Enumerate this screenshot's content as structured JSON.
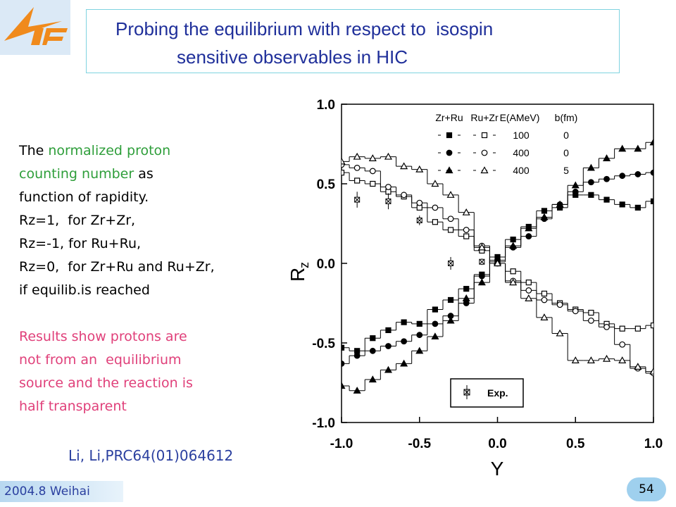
{
  "slide": {
    "title": [
      "Probing the equilibrium with respect to  isospin",
      "sensitive observables in HIC"
    ],
    "notes": [
      [
        {
          "text": "The ",
          "color": "#000000"
        },
        {
          "text": "normalized proton",
          "color": "#2e9e3a"
        }
      ],
      [
        {
          "text": "counting number",
          "color": "#2e9e3a"
        },
        {
          "text": " as",
          "color": "#000000"
        }
      ],
      [
        {
          "text": "function of rapidity.",
          "color": "#000000"
        }
      ],
      [
        {
          "text": "Rz=1,  for Zr+Zr,",
          "color": "#000000"
        }
      ],
      [
        {
          "text": "Rz=-1, for Ru+Ru,",
          "color": "#000000"
        }
      ],
      [
        {
          "text": "Rz=0,  for Zr+Ru and Ru+Zr,",
          "color": "#000000"
        }
      ],
      [
        {
          "text": "if equilib.is reached",
          "color": "#000000"
        }
      ]
    ],
    "conclusion": [
      "Results show protons are",
      "not from an  equilibrium",
      "source and the reaction is",
      "half transparent"
    ],
    "conclusion_color": "#e0407a",
    "reference": "Li, Li,PRC64(01)064612",
    "footer": "2004.8 Weihai",
    "page_number": "54"
  },
  "chart_data": {
    "type": "step",
    "xlabel": "Y",
    "ylabel": "R",
    "ylabel_subscript": "z",
    "xlim": [
      -1,
      1
    ],
    "ylim": [
      -1,
      1
    ],
    "xticks": [
      {
        "value": -1,
        "label": "-1.0"
      },
      -0.5,
      {
        "value": 0,
        "label": "0.0"
      },
      0.5,
      {
        "value": 1,
        "label": "1.0"
      }
    ],
    "yticks": [
      {
        "value": -1,
        "label": "-1.0"
      },
      -0.5,
      {
        "value": 0,
        "label": "0.0"
      },
      0.5,
      {
        "value": 1,
        "label": "1.0"
      }
    ],
    "legend": {
      "headers": [
        "Zr+Ru",
        "Ru+Zr",
        "E(AMeV)",
        "b(fm)"
      ],
      "rows": [
        {
          "energy": "100",
          "b": "0"
        },
        {
          "energy": "400",
          "b": "0"
        },
        {
          "energy": "400",
          "b": "5"
        }
      ]
    },
    "x": [
      -1,
      -0.9,
      -0.8,
      -0.7,
      -0.6,
      -0.5,
      -0.4,
      -0.3,
      -0.2,
      -0.1,
      0,
      0.1,
      0.2,
      0.3,
      0.4,
      0.5,
      0.6,
      0.7,
      0.8,
      0.9,
      1
    ],
    "series": [
      {
        "marker": "square",
        "filled": true,
        "color": "#000000",
        "values": [
          -0.53,
          -0.55,
          -0.47,
          -0.42,
          -0.37,
          -0.38,
          -0.29,
          -0.23,
          -0.16,
          -0.07,
          0.04,
          0.15,
          0.23,
          0.33,
          0.35,
          0.43,
          0.43,
          0.4,
          0.37,
          0.35,
          0.39
        ]
      },
      {
        "marker": "square",
        "filled": false,
        "color": "#000000",
        "values": [
          0.57,
          0.52,
          0.5,
          0.45,
          0.42,
          0.35,
          0.26,
          0.21,
          0.17,
          0.08,
          0,
          -0.05,
          -0.12,
          -0.19,
          -0.25,
          -0.29,
          -0.31,
          -0.38,
          -0.41,
          -0.41,
          -0.39
        ]
      },
      {
        "marker": "circle",
        "filled": true,
        "color": "#000000",
        "values": [
          -0.63,
          -0.58,
          -0.55,
          -0.52,
          -0.49,
          -0.45,
          -0.38,
          -0.33,
          -0.25,
          -0.08,
          0.02,
          0.1,
          0.17,
          0.28,
          0.37,
          0.45,
          0.51,
          0.53,
          0.55,
          0.56,
          0.57
        ]
      },
      {
        "marker": "circle",
        "filled": false,
        "color": "#000000",
        "values": [
          0.62,
          0.6,
          0.58,
          0.48,
          0.43,
          0.38,
          0.35,
          0.28,
          0.21,
          0.11,
          0,
          -0.11,
          -0.17,
          -0.23,
          -0.26,
          -0.3,
          -0.36,
          -0.4,
          -0.51,
          -0.66,
          -0.69
        ]
      },
      {
        "marker": "triangle",
        "filled": true,
        "color": "#000000",
        "values": [
          -0.77,
          -0.8,
          -0.73,
          -0.67,
          -0.63,
          -0.55,
          -0.46,
          -0.36,
          -0.22,
          -0.12,
          0.01,
          0.11,
          0.22,
          0.29,
          0.37,
          0.49,
          0.6,
          0.66,
          0.72,
          0.72,
          0.76
        ]
      },
      {
        "marker": "triangle",
        "filled": false,
        "color": "#000000",
        "values": [
          0.64,
          0.67,
          0.66,
          0.67,
          0.61,
          0.59,
          0.5,
          0.43,
          0.32,
          0.1,
          0,
          -0.12,
          -0.22,
          -0.34,
          -0.44,
          -0.61,
          -0.61,
          -0.6,
          -0.61,
          -0.65,
          -0.68
        ]
      }
    ],
    "experiment": {
      "name": "Exp.",
      "x": [
        -0.9,
        -0.7,
        -0.5,
        -0.3,
        -0.1
      ],
      "values": [
        0.4,
        0.39,
        0.27,
        0,
        0.01
      ],
      "errors": [
        0.05,
        0.05,
        0.03,
        0.04,
        0.02
      ]
    }
  }
}
